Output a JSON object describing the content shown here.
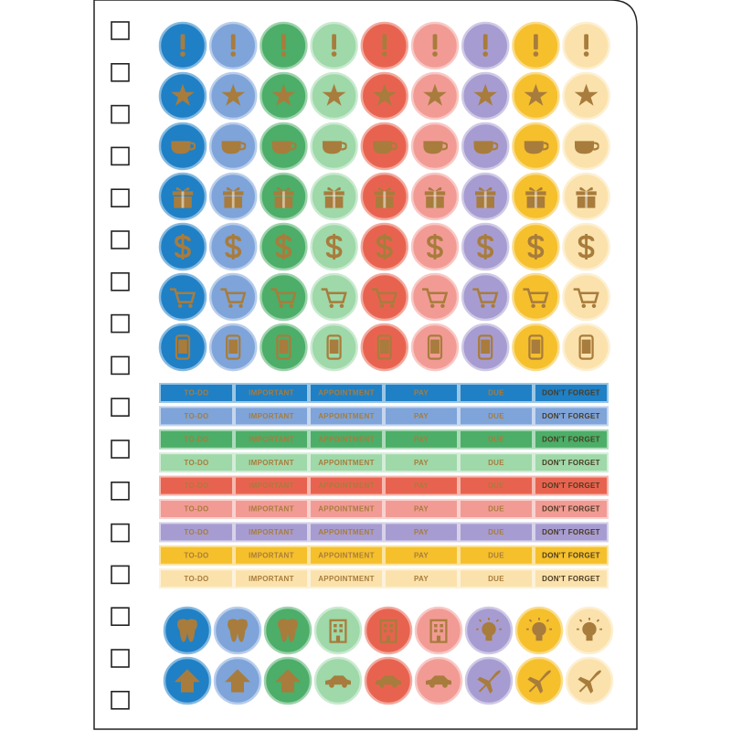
{
  "sheet": {
    "palette": [
      "#1f80c6",
      "#7ea4da",
      "#4cae68",
      "#9fd8a9",
      "#e8634f",
      "#f29b95",
      "#a79cd1",
      "#f5c02c",
      "#fbe2ac"
    ],
    "labels": [
      "TO-DO",
      "IMPORTANT",
      "APPOINTMENT",
      "PAY",
      "DUE",
      "DON'T FORGET"
    ]
  }
}
